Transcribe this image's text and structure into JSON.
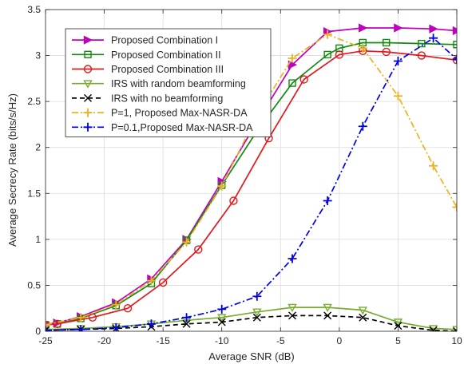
{
  "chart_data": {
    "type": "line",
    "title": "",
    "xlabel": "Average SNR (dB)",
    "ylabel": "Average Secrecy Rate (bits/s/Hz)",
    "xlim": [
      -25,
      10
    ],
    "ylim": [
      0,
      3.5
    ],
    "xticks": [
      "-25",
      "-20",
      "-15",
      "-10",
      "-5",
      "0",
      "5",
      "10"
    ],
    "yticks": [
      "0",
      "0.5",
      "1",
      "1.5",
      "2",
      "2.5",
      "3",
      "3.5"
    ],
    "grid": true,
    "legend_position": "top-left",
    "series": [
      {
        "name": "Proposed Combination I",
        "color": "#BF00BF",
        "line": "solid",
        "marker": "triangle-right",
        "x": [
          -25,
          -24,
          -22,
          -19,
          -16,
          -13,
          -10,
          -7,
          -4,
          -1,
          2,
          5,
          8,
          10
        ],
        "y": [
          0.08,
          0.09,
          0.16,
          0.31,
          0.57,
          1.0,
          1.63,
          2.28,
          2.9,
          3.26,
          3.3,
          3.3,
          3.29,
          3.27
        ]
      },
      {
        "name": "Proposed Combination II",
        "color": "#118A11",
        "line": "solid",
        "marker": "square",
        "x": [
          -25,
          -24,
          -22,
          -19,
          -16,
          -13,
          -10,
          -7,
          -4,
          -1,
          0,
          2,
          4,
          7,
          10
        ],
        "y": [
          0.07,
          0.08,
          0.14,
          0.28,
          0.52,
          0.99,
          1.59,
          2.18,
          2.7,
          3.01,
          3.08,
          3.14,
          3.14,
          3.13,
          3.12
        ]
      },
      {
        "name": "Proposed Combination III",
        "color": "#E5171B",
        "line": "solid",
        "marker": "circle",
        "x": [
          -25,
          -24,
          -21,
          -18,
          -15,
          -12,
          -9,
          -6,
          -3,
          0,
          2,
          4,
          7,
          10
        ],
        "y": [
          0.07,
          0.08,
          0.15,
          0.25,
          0.53,
          0.89,
          1.42,
          2.1,
          2.74,
          3.01,
          3.05,
          3.04,
          3.0,
          2.95
        ]
      },
      {
        "name": "IRS with random beamforming",
        "color": "#77AC30",
        "line": "solid",
        "marker": "triangle-down",
        "x": [
          -25,
          -22,
          -19,
          -16,
          -13,
          -10,
          -7,
          -4,
          -1,
          2,
          5,
          8,
          10
        ],
        "y": [
          0.02,
          0.03,
          0.05,
          0.08,
          0.12,
          0.15,
          0.21,
          0.26,
          0.26,
          0.23,
          0.1,
          0.03,
          0.02
        ]
      },
      {
        "name": "IRS with no beamforming",
        "color": "#000000",
        "line": "dashed",
        "marker": "x",
        "x": [
          -25,
          -22,
          -19,
          -16,
          -13,
          -10,
          -7,
          -4,
          -1,
          2,
          5,
          8,
          10
        ],
        "y": [
          0.01,
          0.02,
          0.03,
          0.05,
          0.08,
          0.1,
          0.15,
          0.17,
          0.17,
          0.15,
          0.06,
          0.01,
          0.0
        ]
      },
      {
        "name": "P=1, Proposed Max-NASR-DA",
        "color": "#EDB120",
        "line": "dashdot",
        "marker": "plus",
        "x": [
          -25,
          -22,
          -19,
          -16,
          -13,
          -10,
          -7,
          -4,
          -1,
          2,
          5,
          8,
          10
        ],
        "y": [
          0.07,
          0.15,
          0.29,
          0.55,
          0.97,
          1.58,
          2.35,
          2.97,
          3.23,
          3.08,
          2.56,
          1.8,
          1.35
        ]
      },
      {
        "name": "P=0.1,Proposed Max-NASR-DA",
        "color": "#0000E6",
        "line": "dashdot",
        "marker": "plus",
        "x": [
          -25,
          -22,
          -19,
          -16,
          -13,
          -10,
          -7,
          -4,
          -1,
          2,
          5,
          8,
          10
        ],
        "y": [
          0.01,
          0.02,
          0.04,
          0.08,
          0.15,
          0.24,
          0.38,
          0.79,
          1.42,
          2.23,
          2.94,
          3.19,
          2.96
        ]
      }
    ]
  }
}
